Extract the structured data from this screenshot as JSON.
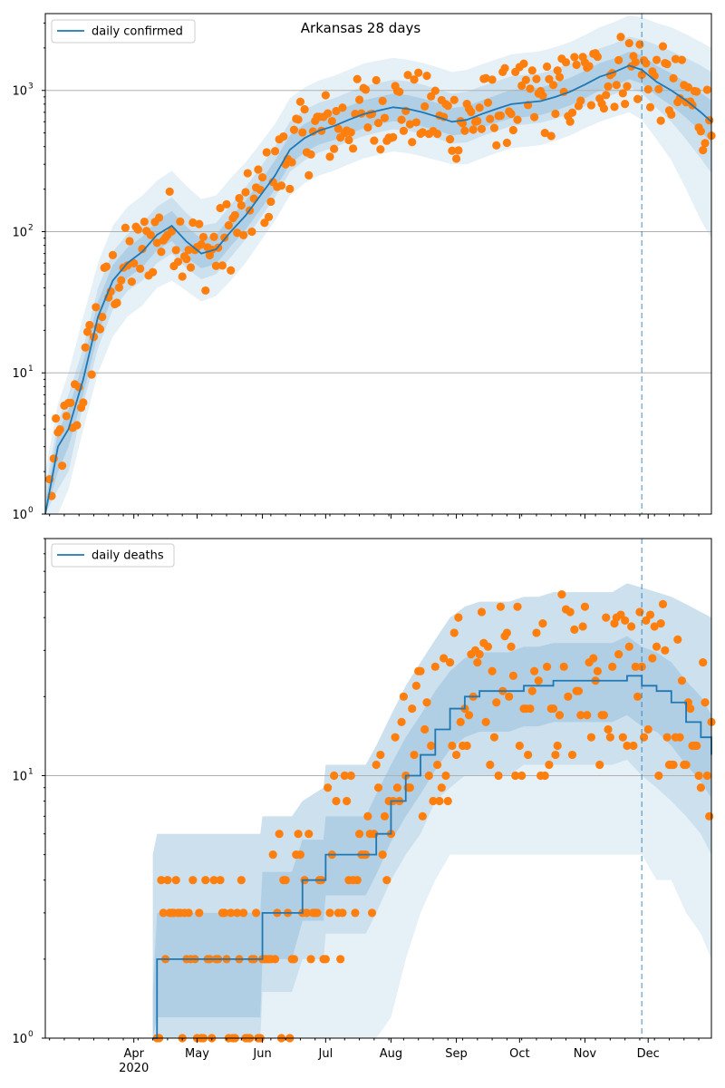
{
  "figure_title": "Arkansas 28 days",
  "colors": {
    "model_line": "#1f77b4",
    "band": "#1f77b4",
    "observed": "#ff7f0e",
    "grid": "#b0b0b0",
    "forecast_marker": "#1f77b4",
    "axes": "#000000"
  },
  "chart_data": [
    {
      "type": "line",
      "panel": "top",
      "y_scale": "log",
      "ylim": [
        1,
        3500
      ],
      "xlim": [
        "2020-02-19",
        "2020-12-31"
      ],
      "y_ticks": [
        {
          "value": 1,
          "label": "10",
          "exp": "0"
        },
        {
          "value": 10,
          "label": "10",
          "exp": "1"
        },
        {
          "value": 100,
          "label": "10",
          "exp": "2"
        },
        {
          "value": 1000,
          "label": "10",
          "exp": "3"
        }
      ],
      "x_ticks": [
        {
          "date": "2020-04-01",
          "label": "Apr",
          "sub": "2020"
        },
        {
          "date": "2020-05-01",
          "label": "May",
          "sub": ""
        },
        {
          "date": "2020-06-01",
          "label": "Jun",
          "sub": ""
        },
        {
          "date": "2020-07-01",
          "label": "Jul",
          "sub": ""
        },
        {
          "date": "2020-08-01",
          "label": "Aug",
          "sub": ""
        },
        {
          "date": "2020-09-01",
          "label": "Sep",
          "sub": ""
        },
        {
          "date": "2020-10-01",
          "label": "Oct",
          "sub": ""
        },
        {
          "date": "2020-11-01",
          "label": "Nov",
          "sub": ""
        },
        {
          "date": "2020-12-01",
          "label": "Dec",
          "sub": ""
        }
      ],
      "grid": "horizontal",
      "legend": {
        "placement": "top-left",
        "entries": [
          "daily confirmed"
        ]
      },
      "forecast_start": "2020-11-28",
      "series": [
        {
          "name": "daily confirmed",
          "kind": "model-line",
          "x": [
            "2020-02-19",
            "2020-02-25",
            "2020-03-01",
            "2020-03-08",
            "2020-03-15",
            "2020-03-22",
            "2020-03-29",
            "2020-04-05",
            "2020-04-12",
            "2020-04-19",
            "2020-04-26",
            "2020-05-03",
            "2020-05-10",
            "2020-05-17",
            "2020-05-24",
            "2020-05-31",
            "2020-06-07",
            "2020-06-14",
            "2020-06-21",
            "2020-06-28",
            "2020-07-05",
            "2020-07-12",
            "2020-07-19",
            "2020-07-26",
            "2020-08-02",
            "2020-08-09",
            "2020-08-16",
            "2020-08-23",
            "2020-08-30",
            "2020-09-06",
            "2020-09-13",
            "2020-09-20",
            "2020-09-27",
            "2020-10-04",
            "2020-10-11",
            "2020-10-18",
            "2020-10-25",
            "2020-11-01",
            "2020-11-08",
            "2020-11-15",
            "2020-11-22",
            "2020-11-28",
            "2020-12-05",
            "2020-12-12",
            "2020-12-19",
            "2020-12-26",
            "2020-12-31"
          ],
          "y": [
            1,
            3,
            4,
            9,
            25,
            45,
            60,
            72,
            95,
            110,
            85,
            70,
            75,
            100,
            130,
            180,
            250,
            380,
            460,
            520,
            560,
            620,
            680,
            720,
            760,
            740,
            700,
            650,
            600,
            620,
            680,
            740,
            800,
            820,
            840,
            900,
            980,
            1100,
            1250,
            1350,
            1500,
            1400,
            1150,
            1000,
            850,
            700,
            600
          ]
        }
      ],
      "bands": [
        {
          "level": "outer",
          "lower": [
            1,
            1,
            1.5,
            4,
            10,
            18,
            25,
            30,
            40,
            45,
            38,
            32,
            35,
            45,
            60,
            85,
            120,
            180,
            220,
            250,
            270,
            300,
            330,
            350,
            370,
            360,
            340,
            320,
            300,
            300,
            330,
            360,
            390,
            400,
            410,
            440,
            480,
            540,
            600,
            650,
            700,
            620,
            450,
            320,
            200,
            120,
            90
          ],
          "upper": [
            2,
            6,
            10,
            25,
            60,
            110,
            150,
            180,
            230,
            270,
            210,
            170,
            180,
            240,
            310,
            420,
            580,
            880,
            1050,
            1180,
            1270,
            1400,
            1550,
            1630,
            1700,
            1650,
            1570,
            1460,
            1350,
            1400,
            1530,
            1660,
            1800,
            1850,
            1900,
            2030,
            2200,
            2470,
            2800,
            3050,
            3400,
            3300,
            3000,
            2800,
            2500,
            2200,
            2000
          ]
        },
        {
          "level": "middle",
          "lower": [
            1,
            1.5,
            2,
            6,
            15,
            28,
            38,
            45,
            60,
            70,
            55,
            46,
            50,
            66,
            88,
            125,
            175,
            265,
            320,
            365,
            395,
            435,
            475,
            505,
            530,
            520,
            490,
            455,
            420,
            430,
            475,
            515,
            560,
            575,
            590,
            630,
            690,
            770,
            870,
            940,
            1050,
            960,
            750,
            600,
            450,
            330,
            260
          ],
          "upper": [
            1.5,
            4.5,
            7,
            15,
            40,
            72,
            96,
            115,
            150,
            175,
            135,
            110,
            115,
            155,
            205,
            285,
            400,
            600,
            730,
            820,
            880,
            970,
            1070,
            1130,
            1190,
            1160,
            1100,
            1020,
            950,
            980,
            1070,
            1160,
            1260,
            1290,
            1320,
            1420,
            1550,
            1740,
            1980,
            2150,
            2400,
            2300,
            2100,
            1900,
            1700,
            1500,
            1350
          ]
        },
        {
          "level": "inner",
          "lower": [
            1,
            2,
            3,
            7,
            19,
            35,
            47,
            56,
            74,
            86,
            66,
            55,
            59,
            79,
            103,
            143,
            200,
            300,
            365,
            415,
            445,
            490,
            540,
            575,
            605,
            590,
            555,
            520,
            480,
            495,
            545,
            590,
            635,
            650,
            670,
            720,
            785,
            880,
            1000,
            1080,
            1200,
            1120,
            920,
            780,
            640,
            510,
            430
          ],
          "upper": [
            1.2,
            3.8,
            5.5,
            12,
            32,
            58,
            77,
            92,
            120,
            140,
            108,
            89,
            95,
            127,
            165,
            227,
            320,
            480,
            580,
            655,
            700,
            775,
            850,
            900,
            950,
            925,
            875,
            815,
            750,
            775,
            850,
            925,
            1010,
            1030,
            1050,
            1130,
            1230,
            1380,
            1560,
            1690,
            1880,
            1780,
            1500,
            1320,
            1140,
            960,
            850
          ]
        }
      ],
      "observed_approx": "daily confirmed observations scatter around the model line: ~9 in mid-Mar, 20-120 in Apr, 30-450 in May, 200-900 Jun-Jul, 300-1800 Aug-Oct, 600-2500 Nov, 1000-3200 Dec"
    },
    {
      "type": "line",
      "panel": "bottom",
      "y_scale": "log",
      "ylim": [
        1,
        80
      ],
      "xlim": [
        "2020-02-19",
        "2020-12-31"
      ],
      "y_ticks": [
        {
          "value": 1,
          "label": "10",
          "exp": "0"
        },
        {
          "value": 10,
          "label": "10",
          "exp": "1"
        }
      ],
      "x_ticks": [
        {
          "date": "2020-04-01",
          "label": "Apr",
          "sub": "2020"
        },
        {
          "date": "2020-05-01",
          "label": "May",
          "sub": ""
        },
        {
          "date": "2020-06-01",
          "label": "Jun",
          "sub": ""
        },
        {
          "date": "2020-07-01",
          "label": "Jul",
          "sub": ""
        },
        {
          "date": "2020-08-01",
          "label": "Aug",
          "sub": ""
        },
        {
          "date": "2020-09-01",
          "label": "Sep",
          "sub": ""
        },
        {
          "date": "2020-10-01",
          "label": "Oct",
          "sub": ""
        },
        {
          "date": "2020-11-01",
          "label": "Nov",
          "sub": ""
        },
        {
          "date": "2020-12-01",
          "label": "Dec",
          "sub": ""
        }
      ],
      "grid": "horizontal",
      "legend": {
        "placement": "top-left",
        "entries": [
          "daily deaths"
        ]
      },
      "forecast_start": "2020-11-28",
      "series": [
        {
          "name": "daily deaths",
          "kind": "model-line",
          "x": [
            "2020-04-10",
            "2020-04-12",
            "2020-04-20",
            "2020-05-01",
            "2020-05-15",
            "2020-05-31",
            "2020-06-01",
            "2020-06-15",
            "2020-06-20",
            "2020-06-30",
            "2020-07-01",
            "2020-07-10",
            "2020-07-20",
            "2020-07-25",
            "2020-08-01",
            "2020-08-08",
            "2020-08-15",
            "2020-08-22",
            "2020-08-29",
            "2020-09-05",
            "2020-09-12",
            "2020-09-19",
            "2020-09-26",
            "2020-10-03",
            "2020-10-10",
            "2020-10-17",
            "2020-10-24",
            "2020-10-31",
            "2020-11-07",
            "2020-11-14",
            "2020-11-21",
            "2020-11-28",
            "2020-12-05",
            "2020-12-12",
            "2020-12-19",
            "2020-12-26",
            "2020-12-31"
          ],
          "y": [
            1,
            2,
            2,
            2,
            2,
            2,
            3,
            3,
            4,
            4,
            5,
            5,
            5,
            6,
            8,
            10,
            12,
            15,
            18,
            20,
            21,
            21,
            21,
            22,
            22,
            23,
            23,
            23,
            23,
            23,
            24,
            22,
            21,
            19,
            16,
            14,
            12
          ]
        }
      ],
      "bands": [
        {
          "level": "outer",
          "lower": [
            1,
            1,
            1,
            1,
            1,
            1,
            1,
            1,
            1,
            1,
            1,
            1,
            1,
            1,
            1.2,
            2,
            3,
            4,
            5,
            5,
            5,
            5,
            5,
            5,
            5,
            5,
            5,
            5,
            5,
            5,
            5,
            5,
            4,
            4,
            3,
            2.5,
            2
          ],
          "upper": [
            5,
            6,
            6,
            6,
            6,
            6,
            7,
            7,
            8,
            9,
            11,
            11,
            11,
            13,
            17,
            22,
            27,
            33,
            40,
            44,
            46,
            46,
            46,
            48,
            48,
            50,
            50,
            50,
            50,
            50,
            54,
            52,
            50,
            48,
            45,
            42,
            40
          ]
        },
        {
          "level": "middle",
          "lower": [
            1,
            1,
            1,
            1,
            1,
            1,
            1.5,
            1.5,
            2,
            2,
            2.5,
            2.5,
            2.5,
            3,
            4,
            5,
            6,
            8,
            9,
            10,
            10,
            10,
            10,
            11,
            11,
            11,
            11,
            11,
            11,
            11,
            11.5,
            10,
            9,
            8,
            7,
            6,
            5
          ]
        },
        {
          "level": "inner",
          "lower": [
            1,
            1.2,
            1.2,
            1.2,
            1.2,
            1.2,
            2,
            2,
            2.8,
            2.8,
            3.5,
            3.5,
            3.5,
            4.2,
            5.6,
            7,
            8.5,
            10.5,
            12.6,
            14,
            14.7,
            14.7,
            14.7,
            15.4,
            15.4,
            16,
            16,
            16,
            16,
            16,
            17,
            15.4,
            14.7,
            13,
            11,
            9.5,
            8.2
          ],
          "upper": [
            1.5,
            3,
            3,
            3,
            3,
            3,
            4.3,
            4.3,
            5.7,
            5.7,
            7,
            7,
            7,
            8.5,
            11,
            14,
            17,
            21,
            25,
            28,
            29.5,
            29.5,
            29.5,
            31,
            31,
            32,
            32,
            32,
            32,
            32,
            34,
            31,
            29.5,
            27,
            23,
            20,
            17
          ]
        }
      ],
      "observed_approx": "daily deaths observations: mostly 1-2 Mar-May, 1-8 Jun-Jul, 3-30 Aug-Sep, 6-40 Oct-Nov, 9-75 Dec"
    }
  ]
}
